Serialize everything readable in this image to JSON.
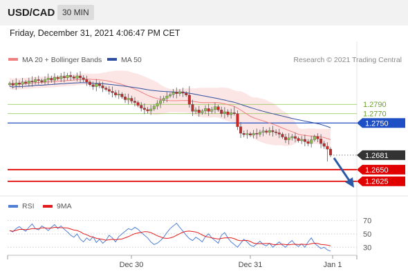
{
  "header": {
    "symbol": "USD/CAD",
    "timeframe": "30 MIN"
  },
  "datetime": "Friday, December 31, 2021 4:06:47 PM CET",
  "main_legend": [
    {
      "label": "MA 20 + Bollinger Bands",
      "color": "#f08080"
    },
    {
      "label": "MA 50",
      "color": "#2e4f9e"
    }
  ],
  "credit": "Research © 2021 Trading Central",
  "rsi_legend": [
    {
      "label": "RSI",
      "color": "#4f7fd6"
    },
    {
      "label": "9MA",
      "color": "#e31b1b"
    }
  ],
  "colors": {
    "bullish": "#8bc34a",
    "bearish": "#c62828",
    "resistance": "#1f4fc4",
    "support": "#e00000",
    "price_tag": "#333333",
    "arrow": "#2a5aa6"
  },
  "x_labels": [
    "Dec 30",
    "Dec 31",
    "Jan 1"
  ],
  "chart_data": [
    {
      "type": "line",
      "name": "price",
      "ylim": [
        1.2595,
        1.2925
      ],
      "levels": [
        {
          "label": "1.2790",
          "value": 1.279,
          "kind": "minor-resistance"
        },
        {
          "label": "1.2770",
          "value": 1.277,
          "kind": "minor-resistance"
        },
        {
          "label": "1.2750",
          "value": 1.275,
          "kind": "pivot"
        },
        {
          "label": "1.2650",
          "value": 1.265,
          "kind": "support"
        },
        {
          "label": "1.2625",
          "value": 1.2625,
          "kind": "support"
        }
      ],
      "last_price": {
        "label": "1.2681",
        "value": 1.2681
      },
      "close": [
        1.2835,
        1.2831,
        1.2836,
        1.2833,
        1.2838,
        1.2835,
        1.284,
        1.2838,
        1.2843,
        1.2841,
        1.2838,
        1.2843,
        1.2846,
        1.2842,
        1.2848,
        1.2845,
        1.285,
        1.2847,
        1.2852,
        1.2849,
        1.2846,
        1.2851,
        1.2847,
        1.2843,
        1.2838,
        1.2832,
        1.2828,
        1.2834,
        1.283,
        1.2825,
        1.2822,
        1.2818,
        1.2815,
        1.281,
        1.2812,
        1.2806,
        1.28,
        1.2803,
        1.2797,
        1.2794,
        1.2788,
        1.2782,
        1.2779,
        1.2776,
        1.278,
        1.2786,
        1.2792,
        1.2798,
        1.2803,
        1.2808,
        1.2811,
        1.2816,
        1.2813,
        1.2817,
        1.2814,
        1.281,
        1.279,
        1.2775,
        1.2778,
        1.2772,
        1.2776,
        1.2781,
        1.2775,
        1.2779,
        1.2785,
        1.2778,
        1.277,
        1.2774,
        1.2768,
        1.2772,
        1.277,
        1.2742,
        1.2728,
        1.2725,
        1.2727,
        1.2724,
        1.2728,
        1.2726,
        1.273,
        1.2733,
        1.273,
        1.2734,
        1.2731,
        1.2729,
        1.2726,
        1.272,
        1.2714,
        1.2718,
        1.2721,
        1.2717,
        1.2712,
        1.2715,
        1.271,
        1.2706,
        1.2714,
        1.2721,
        1.2716,
        1.2706,
        1.27,
        1.2694,
        1.2681
      ]
    },
    {
      "type": "line",
      "name": "RSI",
      "ylim": [
        22,
        78
      ],
      "ticks": [
        {
          "label": "70",
          "value": 70
        },
        {
          "label": "50",
          "value": 50
        },
        {
          "label": "30",
          "value": 30
        }
      ],
      "rsi": [
        55,
        53,
        58,
        61,
        57,
        54,
        60,
        65,
        58,
        56,
        62,
        59,
        55,
        60,
        64,
        58,
        62,
        57,
        53,
        48,
        45,
        50,
        42,
        38,
        44,
        40,
        46,
        37,
        42,
        36,
        40,
        48,
        44,
        38,
        46,
        50,
        54,
        58,
        56,
        60,
        57,
        52,
        48,
        44,
        38,
        34,
        36,
        40,
        45,
        52,
        58,
        62,
        66,
        60,
        54,
        48,
        43,
        40,
        45,
        42,
        38,
        46,
        50,
        44,
        40,
        36,
        48,
        52,
        44,
        38,
        34,
        30,
        36,
        42,
        38,
        33,
        31,
        35,
        39,
        34,
        32,
        36,
        30,
        34,
        38,
        33,
        30,
        36,
        40,
        34,
        31,
        35,
        30,
        38,
        44,
        36,
        32,
        28,
        30,
        26,
        24
      ]
    }
  ]
}
